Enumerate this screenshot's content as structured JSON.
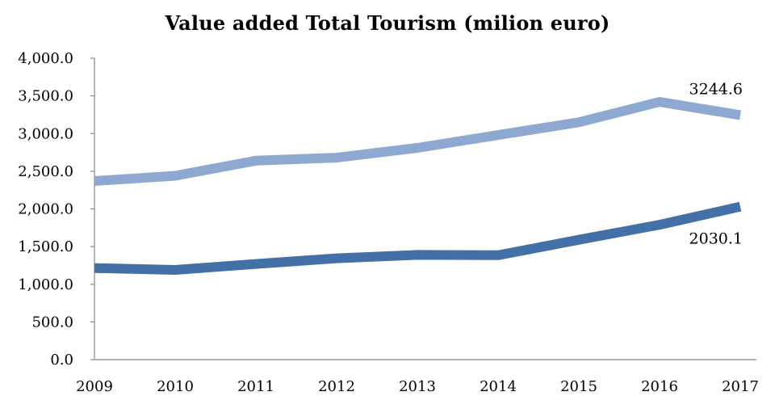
{
  "chart_data": {
    "type": "line",
    "title": "Value added Total Tourism (milion euro)",
    "xlabel": "",
    "ylabel": "",
    "categories": [
      "2009",
      "2010",
      "2011",
      "2012",
      "2013",
      "2014",
      "2015",
      "2016",
      "2017"
    ],
    "y_tick_labels": [
      "0.0",
      "500.0",
      "1,000.0",
      "1,500.0",
      "2,000.0",
      "2,500.0",
      "3,000.0",
      "3,500.0",
      "4,000.0"
    ],
    "ylim": [
      0,
      4000
    ],
    "grid": false,
    "legend": "none",
    "series": [
      {
        "values": [
          2370,
          2440,
          2640,
          2680,
          2810,
          2980,
          3150,
          3420,
          3244.6
        ],
        "color": "#8EA9CF",
        "end_label": "3244.6"
      },
      {
        "values": [
          1215,
          1190,
          1270,
          1345,
          1390,
          1385,
          1590,
          1790,
          2030.1
        ],
        "color": "#4470A8",
        "end_label": "2030.1"
      }
    ]
  }
}
